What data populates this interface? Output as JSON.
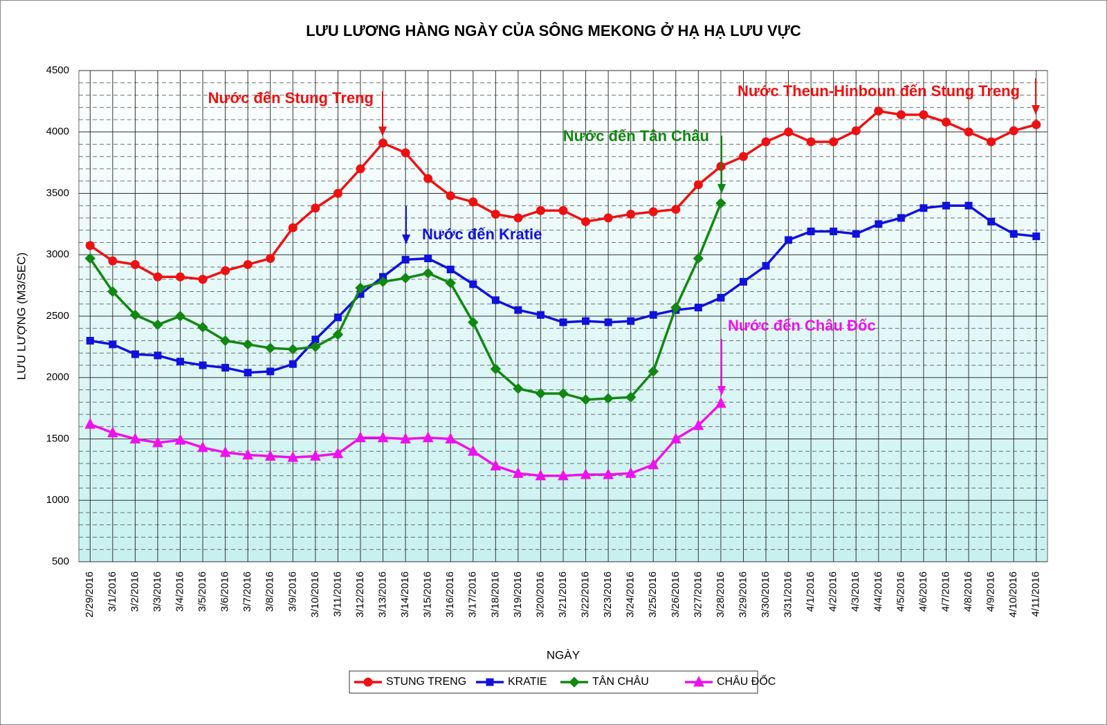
{
  "chart_data": {
    "type": "line",
    "title": "LƯU LƯƠNG HÀNG NGÀY CỦA SÔNG MEKONG Ở HẠ HẠ LƯU VỰC",
    "x_label": "NGÀY",
    "y_label": "LƯU LƯỢNG (M3/SEC)",
    "categories": [
      "2/29/2016",
      "3/1/2016",
      "3/2/2016",
      "3/3/2016",
      "3/4/2016",
      "3/5/2016",
      "3/6/2016",
      "3/7/2016",
      "3/8/2016",
      "3/9/2016",
      "3/10/2016",
      "3/11/2016",
      "3/12/2016",
      "3/13/2016",
      "3/14/2016",
      "3/15/2016",
      "3/16/2016",
      "3/17/2016",
      "3/18/2016",
      "3/19/2016",
      "3/20/2016",
      "3/21/2016",
      "3/22/2016",
      "3/23/2016",
      "3/24/2016",
      "3/25/2016",
      "3/26/2016",
      "3/27/2016",
      "3/28/2016",
      "3/29/2016",
      "3/30/2016",
      "3/31/2016",
      "4/1/2016",
      "4/2/2016",
      "4/3/2016",
      "4/4/2016",
      "4/5/2016",
      "4/6/2016",
      "4/7/2016",
      "4/8/2016",
      "4/9/2016",
      "4/10/2016",
      "4/11/2016"
    ],
    "series": [
      {
        "name": "STUNG TRENG",
        "color": "#ee1111",
        "marker": "circle",
        "values": [
          3075,
          2950,
          2920,
          2820,
          2820,
          2800,
          2870,
          2920,
          2970,
          3220,
          3380,
          3500,
          3700,
          3910,
          3830,
          3620,
          3480,
          3430,
          3330,
          3300,
          3360,
          3360,
          3270,
          3300,
          3330,
          3350,
          3370,
          3570,
          3720,
          3800,
          3920,
          4000,
          3920,
          3920,
          4010,
          4170,
          4140,
          4140,
          4080,
          4000,
          3920,
          4010,
          4060
        ]
      },
      {
        "name": "KRATIE",
        "color": "#1111dd",
        "marker": "square",
        "values": [
          2300,
          2270,
          2190,
          2180,
          2130,
          2100,
          2080,
          2040,
          2050,
          2110,
          2310,
          2490,
          2680,
          2820,
          2960,
          2970,
          2880,
          2760,
          2630,
          2550,
          2510,
          2450,
          2460,
          2450,
          2460,
          2510,
          2550,
          2570,
          2650,
          2780,
          2910,
          3120,
          3190,
          3190,
          3170,
          3250,
          3300,
          3380,
          3400,
          3400,
          3270,
          3170,
          3150
        ]
      },
      {
        "name": "TÂN CHÂU",
        "color": "#118811",
        "marker": "diamond",
        "values": [
          2970,
          2700,
          2510,
          2430,
          2500,
          2410,
          2300,
          2270,
          2240,
          2230,
          2250,
          2350,
          2730,
          2780,
          2810,
          2850,
          2770,
          2450,
          2070,
          1910,
          1870,
          1870,
          1820,
          1830,
          1840,
          2050,
          2570,
          2970,
          3420,
          null,
          null,
          null,
          null,
          null,
          null,
          null,
          null,
          null,
          null,
          null,
          null,
          null,
          null
        ]
      },
      {
        "name": "CHÂU ĐỐC",
        "color": "#ee11ee",
        "marker": "triangle",
        "values": [
          1620,
          1550,
          1500,
          1470,
          1490,
          1430,
          1390,
          1370,
          1360,
          1350,
          1360,
          1380,
          1510,
          1510,
          1500,
          1510,
          1500,
          1400,
          1280,
          1220,
          1200,
          1200,
          1210,
          1210,
          1220,
          1290,
          1500,
          1610,
          1790,
          null,
          null,
          null,
          null,
          null,
          null,
          null,
          null,
          null,
          null,
          null,
          null,
          null,
          null
        ]
      }
    ],
    "ylim": [
      500,
      4500
    ],
    "yticks": [
      500,
      1000,
      1500,
      2000,
      2500,
      3000,
      3500,
      4000,
      4500
    ],
    "minor_yticks": [
      600,
      700,
      800,
      900,
      1100,
      1200,
      1300,
      1400,
      1600,
      1700,
      1800,
      1900,
      2100,
      2200,
      2300,
      2400,
      2600,
      2700,
      2800,
      2900,
      3100,
      3200,
      3300,
      3400,
      3600,
      3700,
      3800,
      3900,
      4100,
      4200,
      4300,
      4400
    ],
    "grid": true,
    "legend": "bottom",
    "annotations": [
      {
        "text": "Nước đến Stung Treng",
        "color": "#ee1111"
      },
      {
        "text": "Nước Theun-Hinboun đến Stung Treng",
        "color": "#ee1111"
      },
      {
        "text": "Nước đến Tân Châu",
        "color": "#118811"
      },
      {
        "text": "Nước đến Kratie",
        "color": "#1111dd"
      },
      {
        "text": "Nước đến Châu Đốc",
        "color": "#ee11ee"
      }
    ]
  }
}
